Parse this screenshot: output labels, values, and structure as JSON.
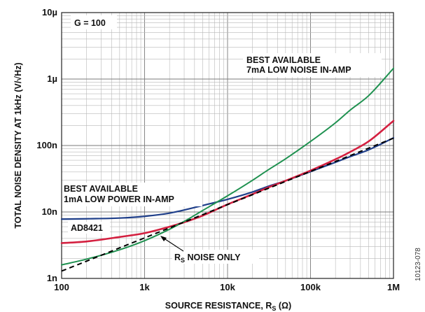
{
  "chart_data": {
    "type": "line",
    "title": "",
    "xlabel": "SOURCE RESISTANCE, R",
    "xlabel_sub": "S",
    "xlabel_unit": " (Ω)",
    "ylabel": "TOTAL NOISE DENSITY AT 1kHz (V/√Hz)",
    "xscale": "log",
    "yscale": "log",
    "xlim": [
      100,
      1000000
    ],
    "ylim": [
      1e-09,
      1e-05
    ],
    "grid": true,
    "x_ticks": [
      {
        "value": 100,
        "label": "100"
      },
      {
        "value": 1000,
        "label": "1k"
      },
      {
        "value": 10000,
        "label": "10k"
      },
      {
        "value": 100000,
        "label": "100k"
      },
      {
        "value": 1000000,
        "label": "1M"
      }
    ],
    "y_ticks": [
      {
        "value": 1e-09,
        "label": "1n"
      },
      {
        "value": 1e-08,
        "label": "10n"
      },
      {
        "value": 1e-07,
        "label": "100n"
      },
      {
        "value": 1e-06,
        "label": "1µ"
      },
      {
        "value": 1e-05,
        "label": "10µ"
      }
    ],
    "x": [
      100,
      200,
      500,
      1000,
      2000,
      3000,
      5000,
      10000,
      20000,
      30000,
      50000,
      100000,
      200000,
      300000,
      500000,
      1000000
    ],
    "series": [
      {
        "color": "#1f3f8a",
        "width": 2.2,
        "dash": "",
        "values": [
          7.8e-09,
          7.9e-09,
          8.1e-09,
          8.6e-09,
          9.6e-09,
          1.07e-08,
          1.25e-08,
          1.55e-08,
          2e-08,
          2.4e-08,
          2.95e-08,
          4.05e-08,
          5.6e-08,
          6.8e-08,
          8.6e-08,
          1.3e-07
        ]
      },
      {
        "color": "#d42040",
        "width": 2.6,
        "dash": "",
        "values": [
          3.4e-09,
          3.6e-09,
          4.2e-09,
          4.8e-09,
          6e-09,
          7e-09,
          8.8e-09,
          1.3e-08,
          1.85e-08,
          2.3e-08,
          2.95e-08,
          4.2e-08,
          6.2e-08,
          8e-08,
          1.15e-07,
          2.35e-07
        ]
      },
      {
        "color": "#1f9150",
        "width": 2.0,
        "dash": "",
        "values": [
          1.6e-09,
          1.95e-09,
          2.7e-09,
          3.7e-09,
          5.5e-09,
          7.2e-09,
          1.05e-08,
          1.75e-08,
          3e-08,
          4.2e-08,
          6.3e-08,
          1.15e-07,
          2.2e-07,
          3.4e-07,
          5.6e-07,
          1.45e-06
        ]
      },
      {
        "color": "#000000",
        "width": 2.0,
        "dash": "7,5",
        "values": [
          1.29e-09,
          1.82e-09,
          2.88e-09,
          4.07e-09,
          5.76e-09,
          7.05e-09,
          9.1e-09,
          1.29e-08,
          1.82e-08,
          2.23e-08,
          2.88e-08,
          4.07e-08,
          5.76e-08,
          7.05e-08,
          9.1e-08,
          1.29e-07
        ]
      }
    ],
    "annotations": {
      "gain": "G = 100",
      "best7_line1": "BEST AVAILABLE",
      "best7_line2": "7mA LOW NOISE IN-AMP",
      "best1_line1": "BEST AVAILABLE",
      "best1_line2": "1mA LOW POWER IN-AMP",
      "ad8421": "AD8421",
      "rs_main": "R",
      "rs_sub": "S",
      "rs_rest": " NOISE ONLY"
    }
  },
  "figure_id": "10123-078"
}
